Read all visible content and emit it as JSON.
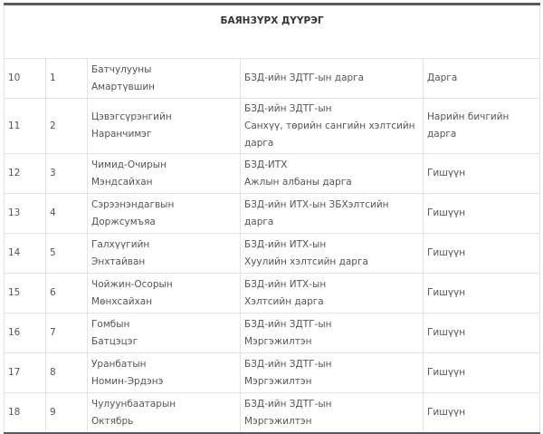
{
  "table": {
    "title": "БАЯНЗҮРХ ДҮҮРЭГ",
    "rows": [
      {
        "no": "10",
        "sub": "1",
        "name": [
          "Батчулууны",
          "Амартүвшин"
        ],
        "position": [
          "БЗД-ийн ЗДТГ-ын дарга"
        ],
        "role": "Дарга"
      },
      {
        "no": "11",
        "sub": "2",
        "name": [
          "Цэвэгсүрэнгийн",
          "Наранчимэг"
        ],
        "position": [
          "БЗД-ийн ЗДТГ-ын",
          "Санхүү, төрийн сангийн хэлтсийн",
          "дарга"
        ],
        "role": "Нарийн бичгийн дарга"
      },
      {
        "no": "12",
        "sub": "3",
        "name": [
          "Чимид-Очирын",
          "Мэндсайхан"
        ],
        "position": [
          "БЗД-ИТХ",
          "Ажлын албаны дарга"
        ],
        "role": "Гишүүн"
      },
      {
        "no": "13",
        "sub": "4",
        "name": [
          "Сэрээнэндагвын",
          "Доржсумъяа"
        ],
        "position": [
          "БЗД-ийн ИТХ-ын ЗБХэлтсийн дарга"
        ],
        "role": "Гишүүн"
      },
      {
        "no": "14",
        "sub": "5",
        "name": [
          "Галхүүгийн",
          "Энхтайван"
        ],
        "position": [
          "БЗД-ийн ИТХ-ын",
          "Хуулийн хэлтсийн дарга"
        ],
        "role": "Гишүүн"
      },
      {
        "no": "15",
        "sub": "6",
        "name": [
          "Чойжин-Осорын",
          "Мөнхсайхан"
        ],
        "position": [
          "БЗД-ийн ИТХ-ын",
          "Хэлтсийн дарга"
        ],
        "role": "Гишүүн"
      },
      {
        "no": "16",
        "sub": "7",
        "name": [
          "Гомбын",
          "Батцэцэг"
        ],
        "position": [
          "БЗД-ийн ЗДТГ-ын",
          "Мэргэжилтэн"
        ],
        "role": "Гишүүн"
      },
      {
        "no": "17",
        "sub": "8",
        "name": [
          "Уранбатын",
          "Номин-Эрдэнэ"
        ],
        "position": [
          "БЗД-ийн ЗДТГ-ын",
          "Мэргэжилтэн"
        ],
        "role": "Гишүүн"
      },
      {
        "no": "18",
        "sub": "9",
        "name": [
          "Чулуунбаатарын",
          "Октябрь"
        ],
        "position": [
          "БЗД-ийн ЗДТГ-ын",
          "Мэргэжилтэн"
        ],
        "role": "Гишүүн"
      }
    ]
  }
}
